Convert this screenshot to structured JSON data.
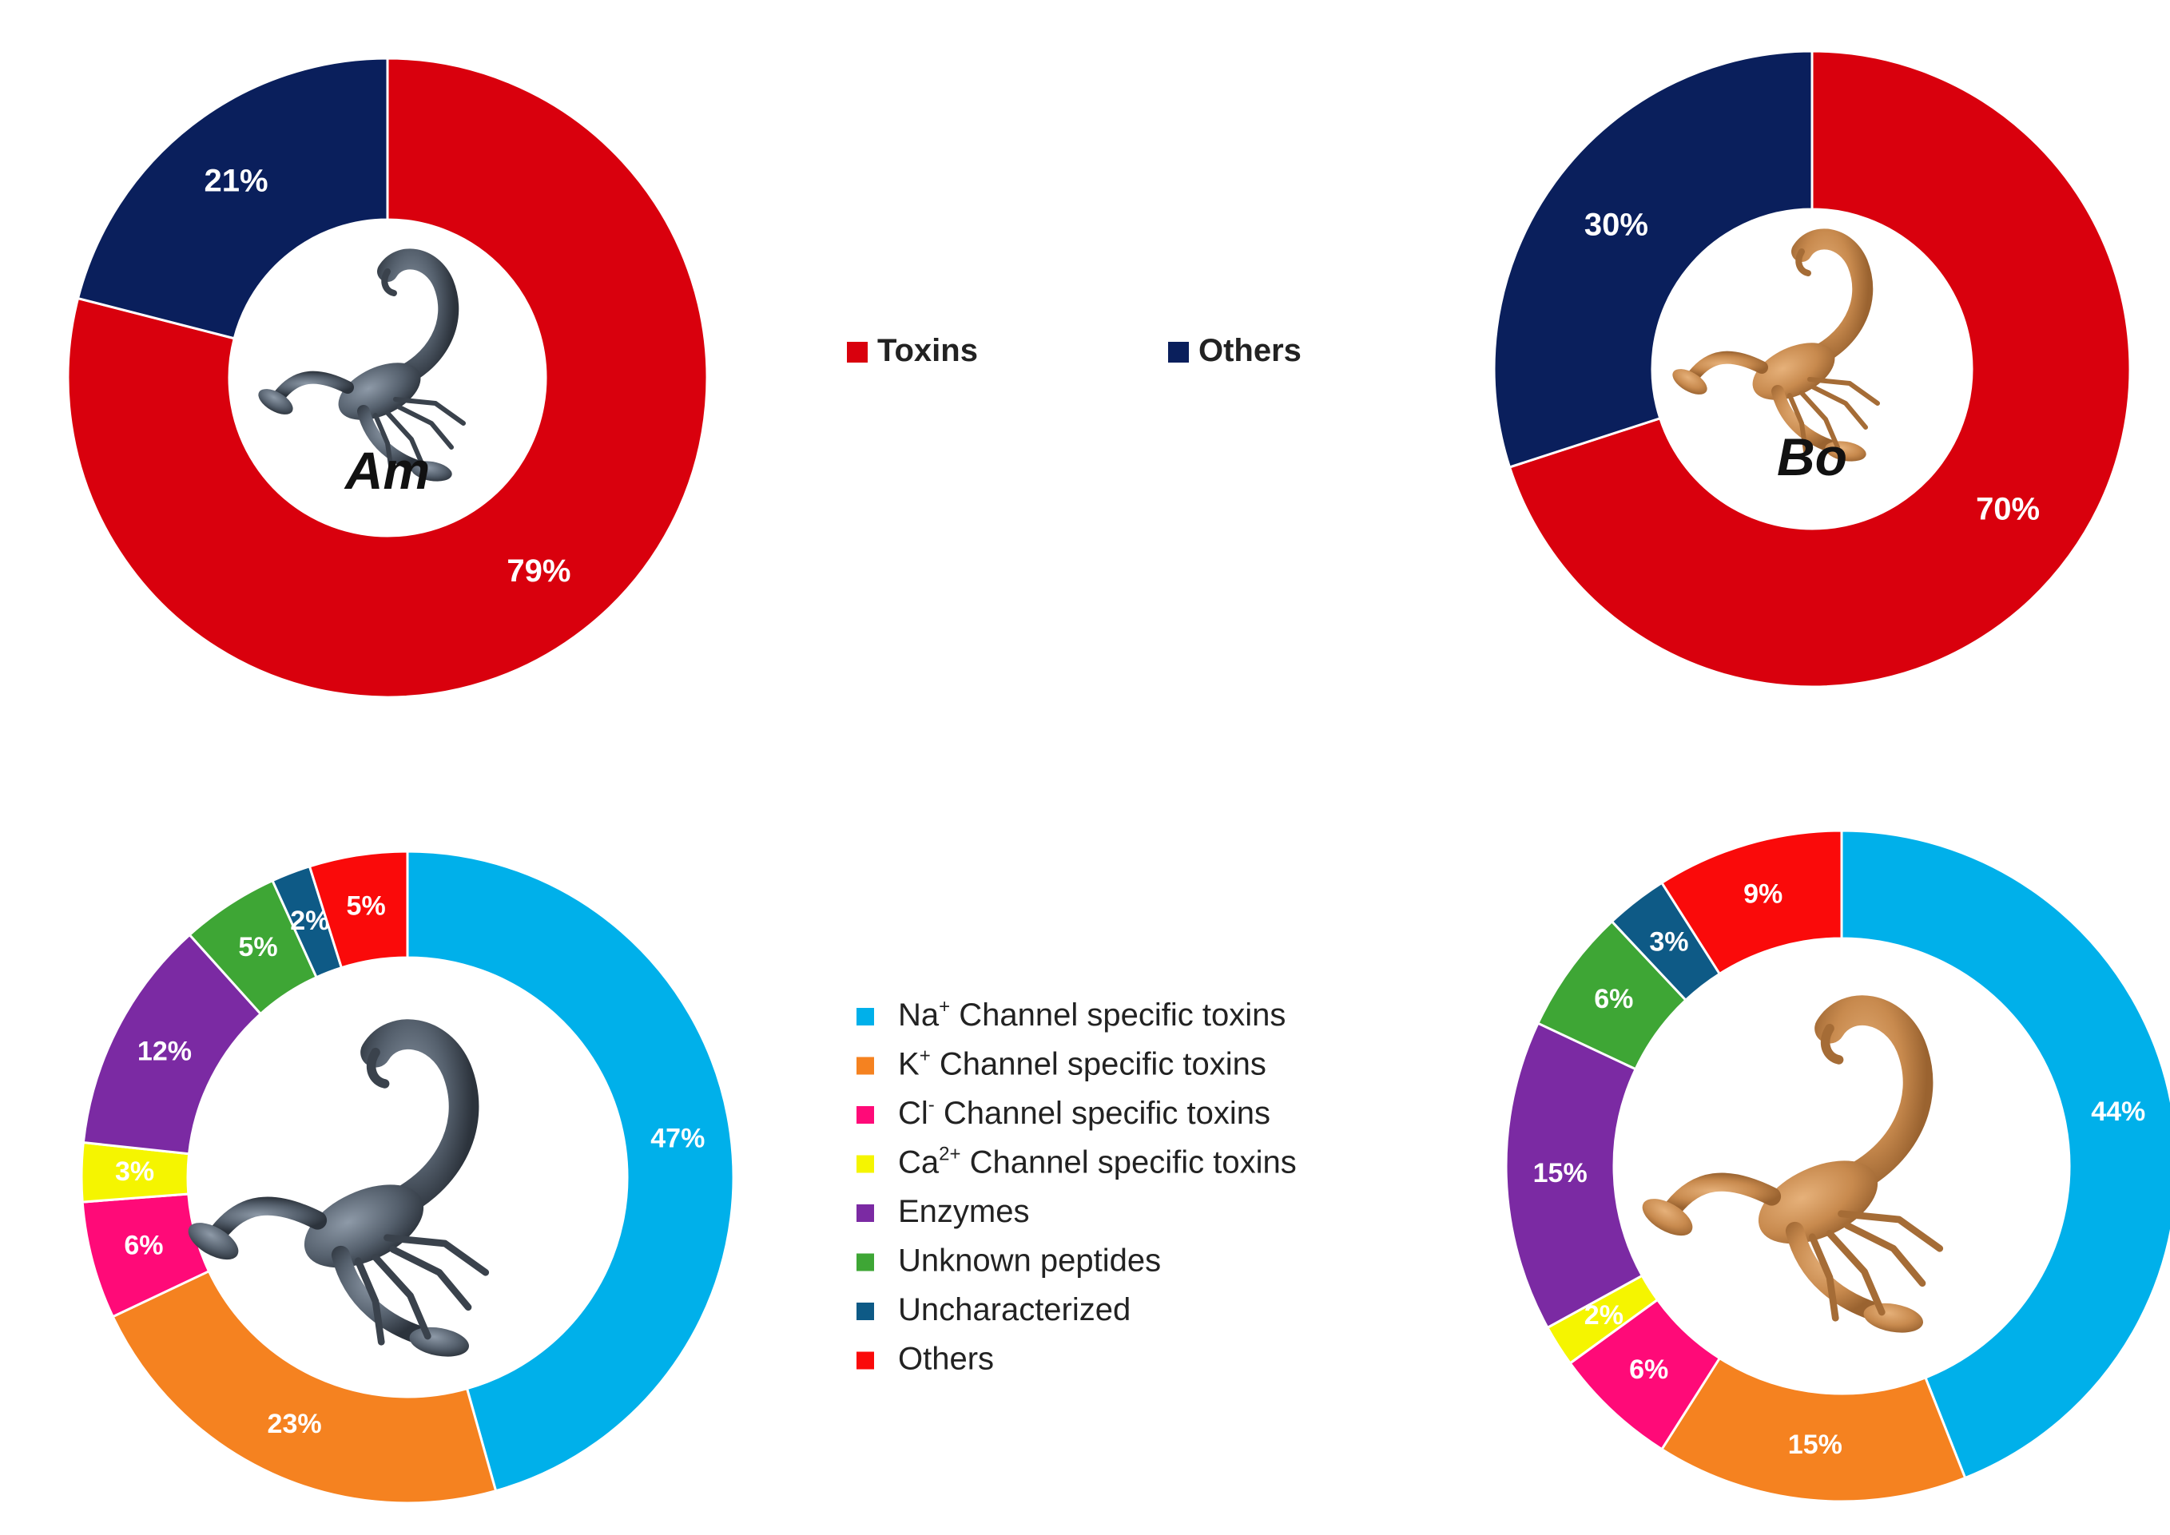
{
  "colors": {
    "toxins": "#d9000d",
    "others_dark": "#0a1f5c",
    "na": "#00b0ea",
    "k": "#f58220",
    "cl": "#ff0a78",
    "ca": "#f5f500",
    "enzymes": "#7b2aa3",
    "unknown": "#3ea635",
    "uncharacterized": "#0e5a86",
    "others_red": "#fa0a0a"
  },
  "legend_top": [
    {
      "label": "Toxins",
      "color": "#d9000d"
    },
    {
      "label": "Others",
      "color": "#0a1f5c"
    }
  ],
  "legend_bottom": [
    {
      "label": "Na+ Channel specific toxins",
      "ion": "Na",
      "sup": "+",
      "rest": " Channel specific toxins",
      "color": "#00b0ea"
    },
    {
      "label": "K+ Channel specific toxins",
      "ion": "K",
      "sup": "+",
      "rest": " Channel specific toxins",
      "color": "#f58220"
    },
    {
      "label": "Cl- Channel specific toxins",
      "ion": "Cl",
      "sup": "-",
      "rest": " Channel specific toxins",
      "color": "#ff0a78"
    },
    {
      "label": "Ca2+ Channel specific toxins",
      "ion": "Ca",
      "sup": "2+",
      "rest": " Channel specific toxins",
      "color": "#f5f500"
    },
    {
      "label": "Enzymes",
      "ion": "Enzymes",
      "sup": "",
      "rest": "",
      "color": "#7b2aa3"
    },
    {
      "label": "Unknown peptides",
      "ion": "Unknown peptides",
      "sup": "",
      "rest": "",
      "color": "#3ea635"
    },
    {
      "label": "Uncharacterized",
      "ion": "Uncharacterized",
      "sup": "",
      "rest": "",
      "color": "#0e5a86"
    },
    {
      "label": "Others",
      "ion": "Others",
      "sup": "",
      "rest": "",
      "color": "#fa0a0a"
    }
  ],
  "chart_data": [
    {
      "type": "pie",
      "center_label": "Am",
      "categories": [
        "Toxins",
        "Others"
      ],
      "values": [
        79,
        21
      ],
      "labels": [
        "79%",
        "21%"
      ],
      "colors": [
        "#d9000d",
        "#0a1f5c"
      ]
    },
    {
      "type": "pie",
      "center_label": "Bo",
      "categories": [
        "Toxins",
        "Others"
      ],
      "values": [
        70,
        30
      ],
      "labels": [
        "70%",
        "30%"
      ],
      "colors": [
        "#d9000d",
        "#0a1f5c"
      ]
    },
    {
      "type": "pie",
      "center_label": "",
      "categories": [
        "Na+ Channel specific toxins",
        "K+ Channel specific toxins",
        "Cl- Channel specific toxins",
        "Ca2+ Channel specific toxins",
        "Enzymes",
        "Unknown peptides",
        "Uncharacterized",
        "Others"
      ],
      "values": [
        47,
        23,
        6,
        3,
        12,
        5,
        2,
        5
      ],
      "labels": [
        "47%",
        "23%",
        "6%",
        "3%",
        "12%",
        "5%",
        "2%",
        "5%"
      ],
      "colors": [
        "#00b0ea",
        "#f58220",
        "#ff0a78",
        "#f5f500",
        "#7b2aa3",
        "#3ea635",
        "#0e5a86",
        "#fa0a0a"
      ]
    },
    {
      "type": "pie",
      "center_label": "",
      "categories": [
        "Na+ Channel specific toxins",
        "K+ Channel specific toxins",
        "Cl- Channel specific toxins",
        "Ca2+ Channel specific toxins",
        "Enzymes",
        "Unknown peptides",
        "Uncharacterized",
        "Others"
      ],
      "values": [
        44,
        15,
        6,
        2,
        15,
        6,
        3,
        9
      ],
      "labels": [
        "44%",
        "15%",
        "6%",
        "2%",
        "15%",
        "6%",
        "3%",
        "9%"
      ],
      "colors": [
        "#00b0ea",
        "#f58220",
        "#ff0a78",
        "#f5f500",
        "#7b2aa3",
        "#3ea635",
        "#0e5a86",
        "#fa0a0a"
      ]
    }
  ]
}
